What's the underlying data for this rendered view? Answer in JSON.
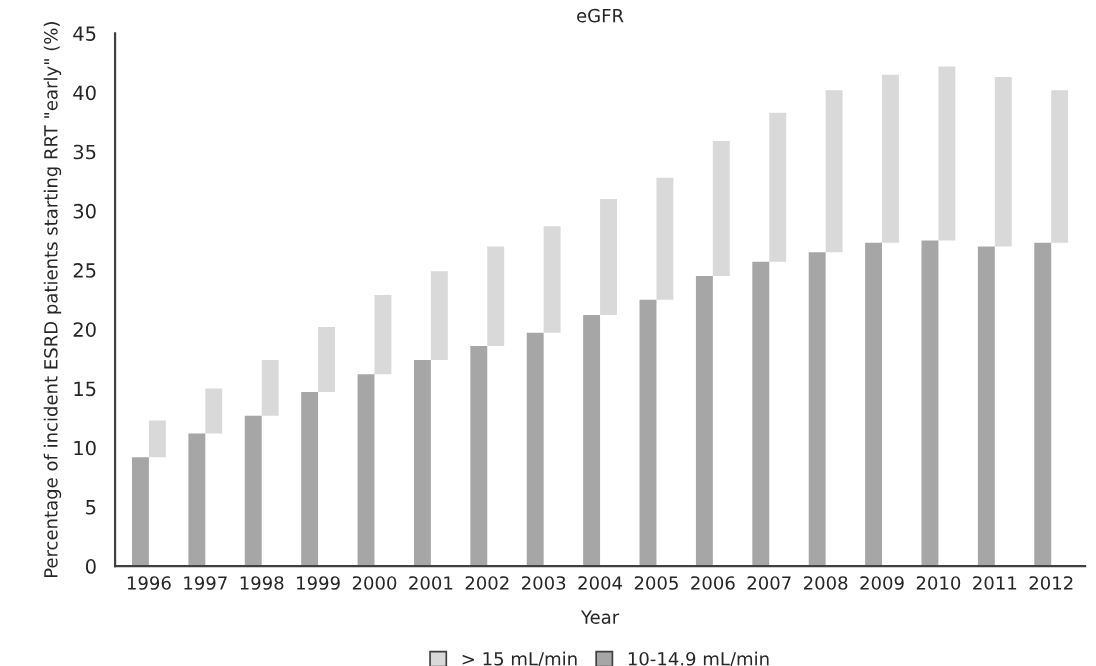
{
  "chart_data": {
    "type": "bar",
    "title": "eGFR",
    "xlabel": "Year",
    "ylabel": "Percentage of incident ESRD patients starting RRT \"early\" (%)",
    "categories": [
      "1996",
      "1997",
      "1998",
      "1999",
      "2000",
      "2001",
      "2002",
      "2003",
      "2004",
      "2005",
      "2006",
      "2007",
      "2008",
      "2009",
      "2010",
      "2011",
      "2012"
    ],
    "series": [
      {
        "name": "> 15 mL/min",
        "color": "#d9d9d9",
        "base": [
          9.2,
          11.2,
          12.7,
          14.7,
          16.2,
          17.4,
          18.6,
          19.7,
          21.2,
          22.5,
          24.5,
          25.7,
          26.5,
          27.3,
          27.5,
          27.0,
          27.3
        ],
        "values": [
          3.1,
          3.8,
          4.7,
          5.5,
          6.7,
          7.5,
          8.4,
          9.0,
          9.8,
          10.3,
          11.4,
          12.6,
          13.7,
          14.2,
          14.7,
          14.3,
          12.9
        ]
      },
      {
        "name": "10-14.9 mL/min",
        "color": "#a6a6a6",
        "values": [
          9.2,
          11.2,
          12.7,
          14.7,
          16.2,
          17.4,
          18.6,
          19.7,
          21.2,
          22.5,
          24.5,
          25.7,
          26.5,
          27.3,
          27.5,
          27.0,
          27.3
        ]
      }
    ],
    "ylim": [
      0,
      45
    ],
    "yticks": [
      0,
      5,
      10,
      15,
      20,
      25,
      30,
      35,
      40,
      45
    ],
    "grid": false,
    "legend": "bottom"
  }
}
